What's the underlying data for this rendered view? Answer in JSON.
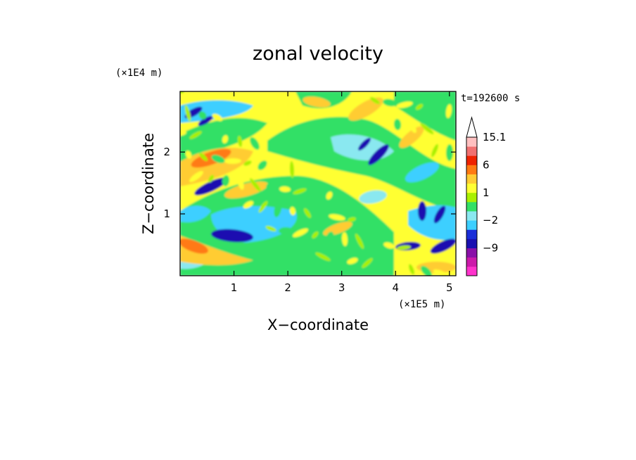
{
  "chart_data": {
    "type": "heatmap",
    "title": "zonal velocity",
    "xlabel": "X−coordinate",
    "ylabel": "Z−coordinate",
    "x_unit": "(×1E5 m)",
    "y_unit": "(×1E4 m)",
    "time_label": "t=192600 s",
    "xlim": [
      0,
      5.12
    ],
    "ylim": [
      0,
      2.98
    ],
    "xticks": [
      1,
      2,
      3,
      4,
      5
    ],
    "xtick_labels": [
      "1",
      "2",
      "3",
      "4",
      "5"
    ],
    "yticks": [
      1,
      2
    ],
    "ytick_labels": [
      "1",
      "2"
    ],
    "colorbar": {
      "levels": [
        -15.1,
        -12,
        -9,
        -6,
        -4,
        -2,
        -1,
        0,
        1,
        2,
        4,
        6,
        9,
        12,
        15.1
      ],
      "colors": [
        "#ff33cc",
        "#cc1aaa",
        "#8a10a8",
        "#1a10b0",
        "#1a2ed8",
        "#3ccfff",
        "#8ae8f0",
        "#33e066",
        "#aaf000",
        "#ffff33",
        "#ffcc33",
        "#ff7a12",
        "#ee2200",
        "#f07070",
        "#ffc0c0"
      ],
      "tick_labels": [
        "15.1",
        "6",
        "1",
        "−2",
        "−9"
      ],
      "tick_values": [
        15.1,
        6,
        1,
        -2,
        -9
      ],
      "extend": "max"
    },
    "grid": false
  }
}
